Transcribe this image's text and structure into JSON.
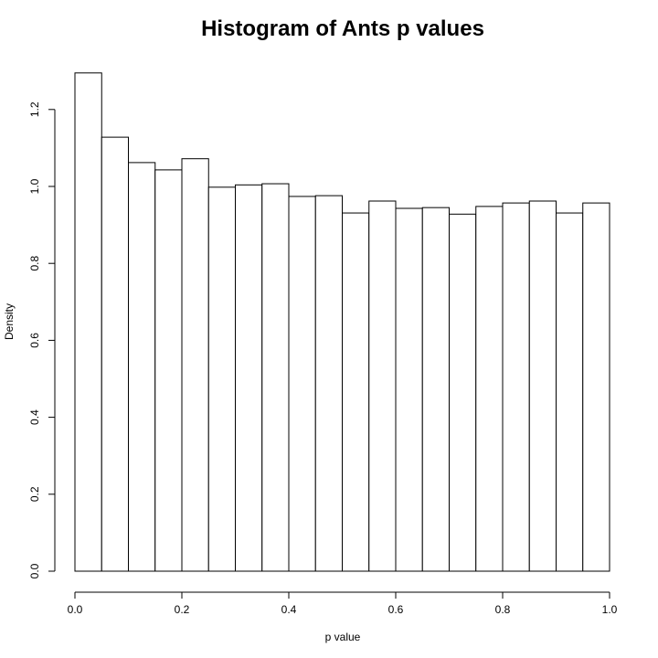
{
  "chart_data": {
    "type": "bar",
    "title": "Histogram of Ants p values",
    "xlabel": "p value",
    "ylabel": "Density",
    "xlim": [
      0,
      1
    ],
    "ylim": [
      0,
      1.3
    ],
    "x_ticks": [
      "0.0",
      "0.2",
      "0.4",
      "0.6",
      "0.8",
      "1.0"
    ],
    "y_ticks": [
      "0.0",
      "0.2",
      "0.4",
      "0.6",
      "0.8",
      "1.0",
      "1.2"
    ],
    "bin_width": 0.05,
    "bins": [
      {
        "start": 0.0,
        "end": 0.05,
        "density": 1.295
      },
      {
        "start": 0.05,
        "end": 0.1,
        "density": 1.128
      },
      {
        "start": 0.1,
        "end": 0.15,
        "density": 1.062
      },
      {
        "start": 0.15,
        "end": 0.2,
        "density": 1.043
      },
      {
        "start": 0.2,
        "end": 0.25,
        "density": 1.072
      },
      {
        "start": 0.25,
        "end": 0.3,
        "density": 0.998
      },
      {
        "start": 0.3,
        "end": 0.35,
        "density": 1.004
      },
      {
        "start": 0.35,
        "end": 0.4,
        "density": 1.007
      },
      {
        "start": 0.4,
        "end": 0.45,
        "density": 0.974
      },
      {
        "start": 0.45,
        "end": 0.5,
        "density": 0.976
      },
      {
        "start": 0.5,
        "end": 0.55,
        "density": 0.931
      },
      {
        "start": 0.55,
        "end": 0.6,
        "density": 0.962
      },
      {
        "start": 0.6,
        "end": 0.65,
        "density": 0.943
      },
      {
        "start": 0.65,
        "end": 0.7,
        "density": 0.945
      },
      {
        "start": 0.7,
        "end": 0.75,
        "density": 0.928
      },
      {
        "start": 0.75,
        "end": 0.8,
        "density": 0.948
      },
      {
        "start": 0.8,
        "end": 0.85,
        "density": 0.957
      },
      {
        "start": 0.85,
        "end": 0.9,
        "density": 0.962
      },
      {
        "start": 0.9,
        "end": 0.95,
        "density": 0.931
      },
      {
        "start": 0.95,
        "end": 1.0,
        "density": 0.957
      }
    ],
    "grid": false,
    "legend": "none"
  }
}
